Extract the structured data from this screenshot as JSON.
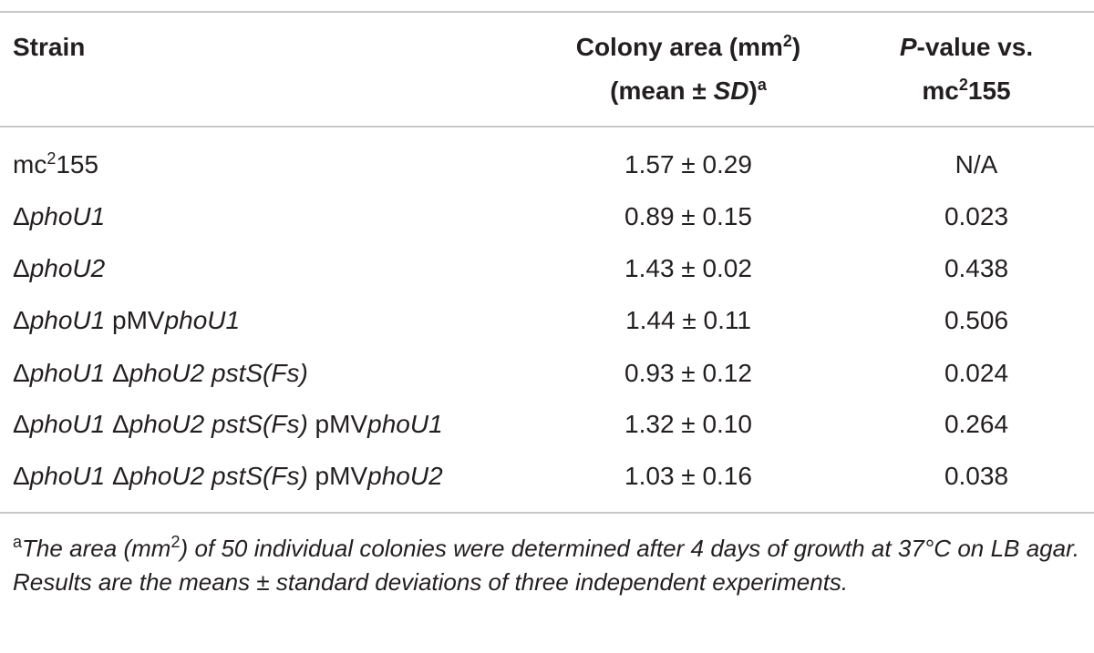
{
  "table": {
    "header": [
      [
        "Strain"
      ],
      [
        [
          "Colony area (mm",
          "2",
          ")"
        ],
        [
          "(mean ± ",
          "SD",
          ")",
          "a"
        ]
      ],
      [
        [
          "P",
          "-value vs."
        ],
        [
          "mc",
          "2",
          "155"
        ]
      ]
    ],
    "rows": [
      [
        [
          "mc",
          "2",
          "155"
        ],
        "1.57 ± 0.29",
        "N/A"
      ],
      [
        [
          "Δ",
          "phoU1"
        ],
        "0.89 ± 0.15",
        "0.023"
      ],
      [
        [
          "Δ",
          "phoU2"
        ],
        "1.43 ± 0.02",
        "0.438"
      ],
      [
        [
          "Δ",
          "phoU1",
          " pMV",
          "phoU1"
        ],
        "1.44 ± 0.11",
        "0.506"
      ],
      [
        [
          "Δ",
          "phoU1 ",
          "Δ",
          "phoU2 pstS(Fs)"
        ],
        "0.93 ± 0.12",
        "0.024"
      ],
      [
        [
          "Δ",
          "phoU1 ",
          "Δ",
          "phoU2 pstS(Fs)",
          " pMV",
          "phoU1"
        ],
        "1.32 ± 0.10",
        "0.264"
      ],
      [
        [
          "Δ",
          "phoU1 ",
          "Δ",
          "phoU2 pstS(Fs)",
          " pMV",
          "phoU2"
        ],
        "1.03 ± 0.16",
        "0.038"
      ]
    ]
  },
  "footnote": [
    "a",
    "The area (mm",
    "2",
    ") of 50 individual colonies were determined after 4 days of growth at 37°C on LB agar. Results are the means ± standard deviations of three independent experiments."
  ]
}
